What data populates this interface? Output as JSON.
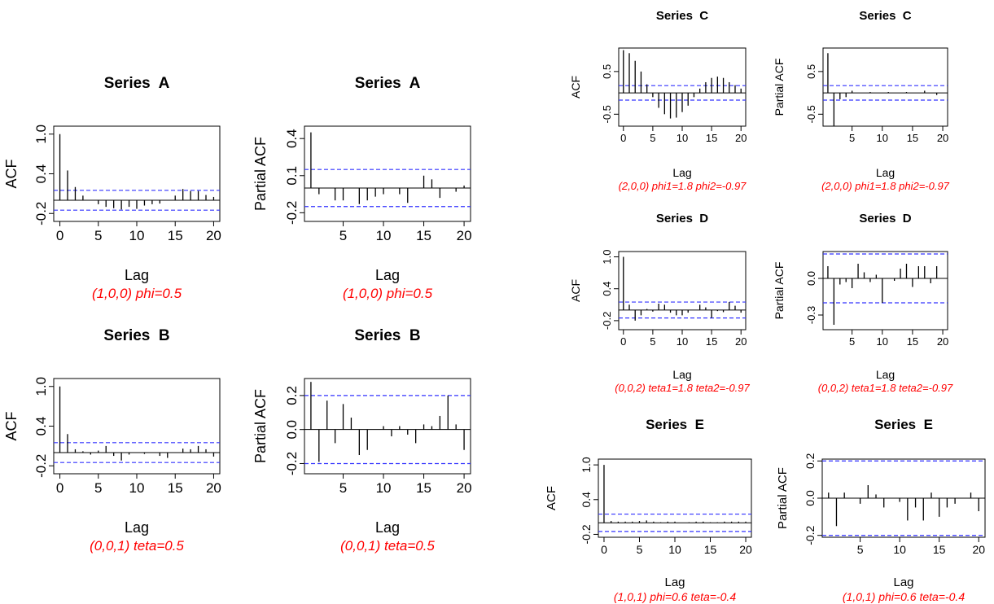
{
  "figure": {
    "colors": {
      "bar": "#000000",
      "bound": "#3333ff",
      "caption": "#ff0000",
      "frame": "#000000"
    }
  },
  "chart_data": [
    {
      "id": "A-acf",
      "type": "bar",
      "title": "Series  A",
      "xlabel": "Lag",
      "ylabel": "ACF",
      "caption": "(1,0,0) phi=0.5",
      "lags": [
        0,
        1,
        2,
        3,
        4,
        5,
        6,
        7,
        8,
        9,
        10,
        11,
        12,
        13,
        14,
        15,
        16,
        17,
        18,
        19,
        20
      ],
      "values": [
        1.0,
        0.45,
        0.2,
        0.07,
        0.0,
        -0.06,
        -0.1,
        -0.12,
        -0.14,
        -0.1,
        -0.13,
        -0.08,
        -0.06,
        -0.05,
        0.0,
        0.07,
        0.17,
        0.14,
        0.14,
        0.08,
        0.05
      ],
      "ci": 0.15,
      "xlim": [
        -0.8,
        20.8
      ],
      "ylim": [
        -0.32,
        1.12
      ],
      "yticks": [
        -0.2,
        0.4,
        1.0
      ],
      "ytick_labels": [
        "-0.2",
        "0.4",
        "1.0"
      ],
      "xticks": [
        0,
        5,
        10,
        15,
        20
      ],
      "xtick_labels": [
        "0",
        "5",
        "10",
        "15",
        "20"
      ]
    },
    {
      "id": "A-pacf",
      "type": "bar",
      "title": "Series  A",
      "xlabel": "Lag",
      "ylabel": "Partial ACF",
      "caption": "(1,0,0) phi=0.5",
      "lags": [
        1,
        2,
        3,
        4,
        5,
        6,
        7,
        8,
        9,
        10,
        11,
        12,
        13,
        14,
        15,
        16,
        17,
        18,
        19,
        20
      ],
      "values": [
        0.45,
        -0.05,
        0.0,
        -0.1,
        -0.1,
        0.0,
        -0.13,
        -0.1,
        -0.07,
        -0.05,
        0.0,
        -0.05,
        -0.12,
        0.0,
        0.1,
        0.07,
        -0.08,
        0.0,
        -0.03,
        0.02
      ],
      "ci": 0.15,
      "xlim": [
        0.2,
        20.8
      ],
      "ylim": [
        -0.27,
        0.5
      ],
      "yticks": [
        -0.2,
        0.1,
        0.4
      ],
      "ytick_labels": [
        "-0.2",
        "0.1",
        "0.4"
      ],
      "xticks": [
        5,
        10,
        15,
        20
      ],
      "xtick_labels": [
        "5",
        "10",
        "15",
        "20"
      ]
    },
    {
      "id": "B-acf",
      "type": "bar",
      "title": "Series  B",
      "xlabel": "Lag",
      "ylabel": "ACF",
      "caption": "(0,0,1) teta=0.5",
      "lags": [
        0,
        1,
        2,
        3,
        4,
        5,
        6,
        7,
        8,
        9,
        10,
        11,
        12,
        13,
        14,
        15,
        16,
        17,
        18,
        19,
        20
      ],
      "values": [
        1.0,
        0.28,
        0.05,
        0.02,
        -0.03,
        0.03,
        0.1,
        -0.05,
        -0.12,
        -0.03,
        0.0,
        -0.02,
        0.0,
        -0.05,
        -0.08,
        0.0,
        0.06,
        0.05,
        0.1,
        0.05,
        -0.06
      ],
      "ci": 0.15,
      "xlim": [
        -0.8,
        20.8
      ],
      "ylim": [
        -0.32,
        1.12
      ],
      "yticks": [
        -0.2,
        0.4,
        1.0
      ],
      "ytick_labels": [
        "-0.2",
        "0.4",
        "1.0"
      ],
      "xticks": [
        0,
        5,
        10,
        15,
        20
      ],
      "xtick_labels": [
        "0",
        "5",
        "10",
        "15",
        "20"
      ]
    },
    {
      "id": "B-pacf",
      "type": "bar",
      "title": "Series  B",
      "xlabel": "Lag",
      "ylabel": "Partial ACF",
      "caption": "(0,0,1) teta=0.5",
      "lags": [
        1,
        2,
        3,
        4,
        5,
        6,
        7,
        8,
        9,
        10,
        11,
        12,
        13,
        14,
        15,
        16,
        17,
        18,
        19,
        20
      ],
      "values": [
        0.28,
        -0.19,
        0.17,
        -0.08,
        0.15,
        0.07,
        -0.15,
        -0.12,
        0.0,
        0.02,
        -0.04,
        0.02,
        -0.03,
        -0.08,
        0.03,
        0.02,
        0.08,
        0.2,
        0.03,
        -0.12
      ],
      "ci": 0.2,
      "xlim": [
        0.2,
        20.8
      ],
      "ylim": [
        -0.26,
        0.3
      ],
      "yticks": [
        -0.2,
        0.0,
        0.2
      ],
      "ytick_labels": [
        "-0.2",
        "0.0",
        "0.2"
      ],
      "xticks": [
        5,
        10,
        15,
        20
      ],
      "xtick_labels": [
        "5",
        "10",
        "15",
        "20"
      ]
    },
    {
      "id": "C-acf",
      "type": "bar",
      "title": "Series  C",
      "xlabel": "Lag",
      "ylabel": "ACF",
      "caption": "(2,0,0) phi1=1.8 phi2=-0.97",
      "lags": [
        0,
        1,
        2,
        3,
        4,
        5,
        6,
        7,
        8,
        9,
        10,
        11,
        12,
        13,
        14,
        15,
        16,
        17,
        18,
        19,
        20
      ],
      "values": [
        1.0,
        0.93,
        0.75,
        0.5,
        0.2,
        -0.1,
        -0.35,
        -0.5,
        -0.6,
        -0.58,
        -0.45,
        -0.3,
        -0.1,
        0.1,
        0.25,
        0.35,
        0.38,
        0.35,
        0.25,
        0.18,
        0.1
      ],
      "ci": 0.17,
      "xlim": [
        -0.8,
        20.8
      ],
      "ylim": [
        -0.78,
        1.05
      ],
      "yticks": [
        -0.5,
        0.5
      ],
      "ytick_labels": [
        "-0.5",
        "0.5"
      ],
      "xticks": [
        0,
        5,
        10,
        15,
        20
      ],
      "xtick_labels": [
        "0",
        "5",
        "10",
        "15",
        "20"
      ]
    },
    {
      "id": "C-pacf",
      "type": "bar",
      "title": "Series  C",
      "xlabel": "Lag",
      "ylabel": "Partial ACF",
      "caption": "(2,0,0) phi1=1.8 phi2=-0.97",
      "lags": [
        1,
        2,
        3,
        4,
        5,
        6,
        7,
        8,
        9,
        10,
        11,
        12,
        13,
        14,
        15,
        16,
        17,
        18,
        19,
        20
      ],
      "values": [
        0.93,
        -0.78,
        -0.15,
        -0.1,
        0.05,
        0.0,
        0.0,
        0.02,
        0.0,
        0.0,
        0.02,
        0.0,
        0.0,
        0.02,
        0.0,
        0.0,
        0.05,
        0.0,
        -0.05,
        0.0
      ],
      "ci": 0.17,
      "xlim": [
        0.2,
        20.8
      ],
      "ylim": [
        -0.78,
        1.05
      ],
      "yticks": [
        -0.5,
        0.5
      ],
      "ytick_labels": [
        "-0.5",
        "0.5"
      ],
      "xticks": [
        5,
        10,
        15,
        20
      ],
      "xtick_labels": [
        "5",
        "10",
        "15",
        "20"
      ]
    },
    {
      "id": "D-acf",
      "type": "bar",
      "title": "Series  D",
      "xlabel": "Lag",
      "ylabel": "ACF",
      "caption": "(0,0,2) teta1=1.8 teta2=-0.97",
      "lags": [
        0,
        1,
        2,
        3,
        4,
        5,
        6,
        7,
        8,
        9,
        10,
        11,
        12,
        13,
        14,
        15,
        16,
        17,
        18,
        19,
        20
      ],
      "values": [
        1.0,
        0.1,
        -0.2,
        -0.1,
        0.02,
        -0.03,
        0.12,
        0.1,
        -0.05,
        -0.1,
        -0.1,
        -0.05,
        0.0,
        0.1,
        0.05,
        -0.15,
        -0.02,
        -0.04,
        0.15,
        0.08,
        -0.05
      ],
      "ci": 0.15,
      "xlim": [
        -0.8,
        20.8
      ],
      "ylim": [
        -0.37,
        1.1
      ],
      "yticks": [
        -0.2,
        0.4,
        1.0
      ],
      "ytick_labels": [
        "-0.2",
        "0.4",
        "1.0"
      ],
      "xticks": [
        0,
        5,
        10,
        15,
        20
      ],
      "xtick_labels": [
        "0",
        "5",
        "10",
        "15",
        "20"
      ]
    },
    {
      "id": "D-pacf",
      "type": "bar",
      "title": "Series  D",
      "xlabel": "Lag",
      "ylabel": "Partial ACF",
      "caption": "(0,0,2) teta1=1.8 teta2=-0.97",
      "lags": [
        1,
        2,
        3,
        4,
        5,
        6,
        7,
        8,
        9,
        10,
        11,
        12,
        13,
        14,
        15,
        16,
        17,
        18,
        19,
        20
      ],
      "values": [
        0.1,
        -0.38,
        -0.05,
        -0.03,
        -0.08,
        0.12,
        0.05,
        -0.03,
        0.03,
        -0.2,
        0.0,
        -0.02,
        0.08,
        0.12,
        -0.07,
        0.1,
        0.1,
        -0.04,
        0.1,
        0.0
      ],
      "ci": 0.2,
      "xlim": [
        0.2,
        20.8
      ],
      "ylim": [
        -0.42,
        0.22
      ],
      "yticks": [
        -0.3,
        0.0
      ],
      "ytick_labels": [
        "-0.3",
        "0.0"
      ],
      "xticks": [
        5,
        10,
        15,
        20
      ],
      "xtick_labels": [
        "5",
        "10",
        "15",
        "20"
      ]
    },
    {
      "id": "E-acf",
      "type": "bar",
      "title": "Series  E",
      "xlabel": "Lag",
      "ylabel": "ACF",
      "caption": "(1,0,1) phi=0.6 teta=-0.4",
      "lags": [
        0,
        1,
        2,
        3,
        4,
        5,
        6,
        7,
        8,
        9,
        10,
        11,
        12,
        13,
        14,
        15,
        16,
        17,
        18,
        19,
        20
      ],
      "values": [
        1.0,
        0.03,
        0.02,
        0.02,
        0.02,
        0.03,
        0.04,
        0.02,
        0.01,
        0.02,
        0.02,
        0.0,
        0.01,
        0.02,
        0.02,
        0.01,
        0.01,
        0.02,
        0.02,
        0.02,
        0.02
      ],
      "ci": 0.15,
      "xlim": [
        -0.8,
        20.8
      ],
      "ylim": [
        -0.25,
        1.1
      ],
      "yticks": [
        -0.2,
        0.4,
        1.0
      ],
      "ytick_labels": [
        "-0.2",
        "0.4",
        "1.0"
      ],
      "xticks": [
        0,
        5,
        10,
        15,
        20
      ],
      "xtick_labels": [
        "0",
        "5",
        "10",
        "15",
        "20"
      ]
    },
    {
      "id": "E-pacf",
      "type": "bar",
      "title": "Series  E",
      "xlabel": "Lag",
      "ylabel": "Partial ACF",
      "caption": "(1,0,1) phi=0.6 teta=-0.4",
      "lags": [
        1,
        2,
        3,
        4,
        5,
        6,
        7,
        8,
        9,
        10,
        11,
        12,
        13,
        14,
        15,
        16,
        17,
        18,
        19,
        20
      ],
      "values": [
        0.03,
        -0.15,
        0.03,
        0.0,
        -0.03,
        0.07,
        0.02,
        -0.05,
        0.0,
        -0.02,
        -0.12,
        -0.05,
        -0.12,
        0.03,
        -0.1,
        -0.05,
        -0.03,
        0.0,
        0.03,
        -0.07
      ],
      "ci": 0.2,
      "xlim": [
        0.2,
        20.8
      ],
      "ylim": [
        -0.21,
        0.21
      ],
      "yticks": [
        -0.2,
        0.0,
        0.2
      ],
      "ytick_labels": [
        "-0.2",
        "0.0",
        "0.2"
      ],
      "xticks": [
        5,
        10,
        15,
        20
      ],
      "xtick_labels": [
        "5",
        "10",
        "15",
        "20"
      ]
    }
  ]
}
